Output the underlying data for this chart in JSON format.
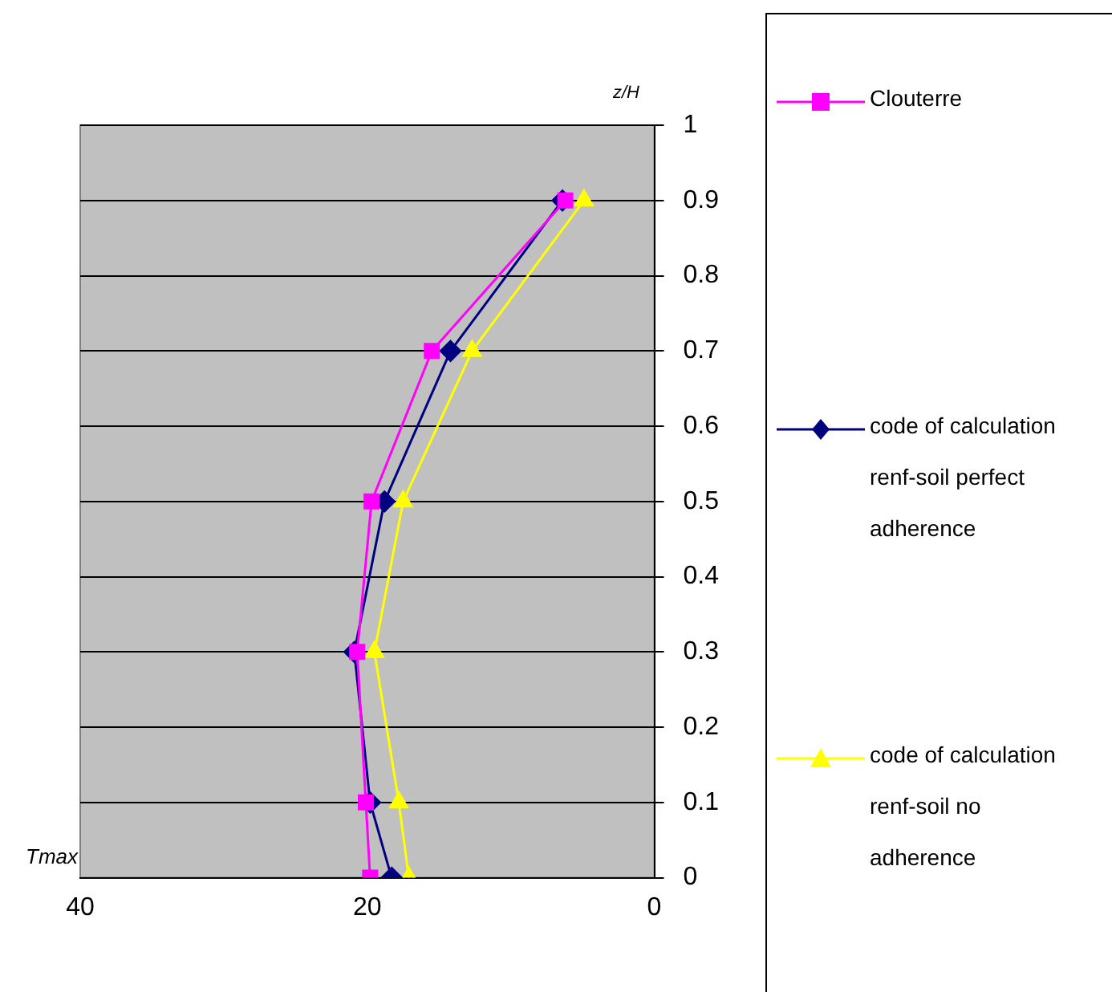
{
  "chart_data": {
    "type": "line",
    "xlabel": "Tmax",
    "ylabel": "z/H",
    "xlim": [
      40,
      0
    ],
    "xticks": [
      40,
      20,
      0
    ],
    "ylim": [
      0,
      1
    ],
    "yticks": [
      0,
      0.1,
      0.2,
      0.3,
      0.4,
      0.5,
      0.6,
      0.7,
      0.8,
      0.9,
      1
    ],
    "grid": "y",
    "legend": "right",
    "line_style": "solid",
    "series": [
      {
        "name": "Clouterre",
        "color": "#ff00ff",
        "marker": "square",
        "x": [
          19.8,
          20.1,
          20.7,
          19.7,
          15.5,
          6.2
        ],
        "values": [
          0,
          0.1,
          0.3,
          0.5,
          0.7,
          0.9
        ]
      },
      {
        "name": "code of calculation renf-soil perfect adherence",
        "color": "#000080",
        "marker": "diamond",
        "x": [
          18.3,
          19.8,
          20.9,
          18.8,
          14.2,
          6.4
        ],
        "values": [
          0,
          0.1,
          0.3,
          0.5,
          0.7,
          0.9
        ]
      },
      {
        "name": "code of calculation renf-soil no adherence",
        "color": "#ffff00",
        "marker": "triangle",
        "x": [
          17.1,
          17.8,
          19.5,
          17.5,
          12.7,
          4.9
        ],
        "values": [
          0,
          0.1,
          0.3,
          0.5,
          0.7,
          0.9
        ]
      }
    ]
  }
}
